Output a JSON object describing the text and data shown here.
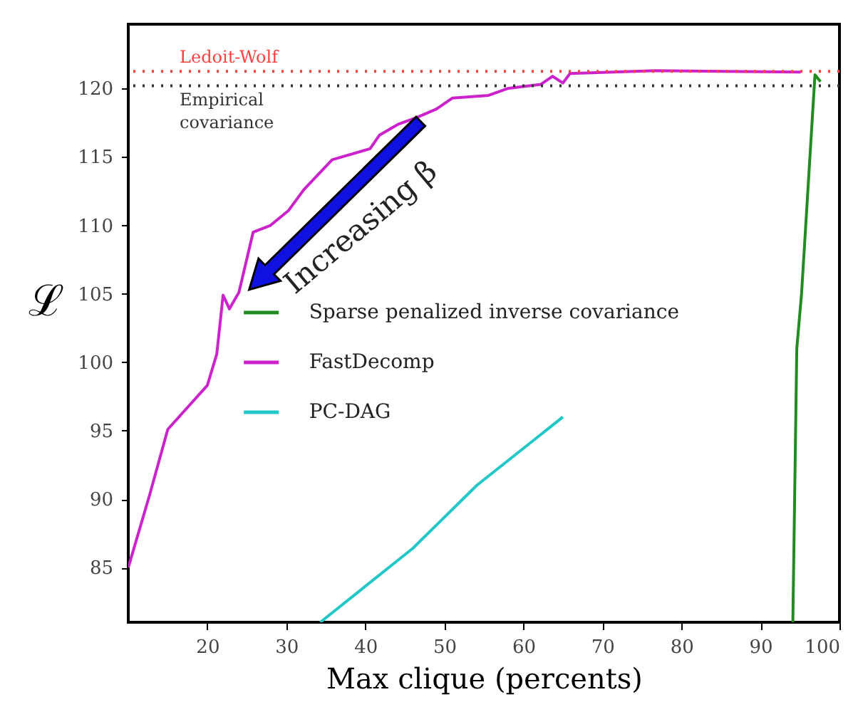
{
  "chart_data": {
    "type": "line",
    "xlabel": "Max clique (percents)",
    "ylabel": "ℒ",
    "xlim": [
      10,
      100
    ],
    "ylim": [
      81,
      124.7
    ],
    "xticks": [
      20,
      30,
      40,
      50,
      60,
      70,
      80,
      90,
      100
    ],
    "yticks": [
      85,
      90,
      95,
      100,
      105,
      110,
      115,
      120
    ],
    "grid": false,
    "legend": "left",
    "marker": "none",
    "line_style": "solid",
    "series": [
      {
        "name": "Sparse penalized inverse covariance",
        "color": "#228b22",
        "x": [
          94.1,
          94.6,
          95.2,
          96.9,
          97.6
        ],
        "values": [
          81,
          101,
          105,
          121,
          120.5
        ]
      },
      {
        "name": "FastDecomp",
        "color": "#cc22cc",
        "x": [
          10,
          12.7,
          15,
          20,
          21.2,
          22,
          22.8,
          24,
          25.8,
          28,
          30.3,
          32.2,
          35.8,
          40.6,
          41.8,
          44.2,
          46.6,
          49,
          51,
          55.6,
          58,
          62.2,
          63.7,
          65,
          65.9,
          71.3,
          76.7,
          95.1
        ],
        "values": [
          85,
          90.3,
          95.1,
          98.3,
          100.6,
          104.9,
          103.9,
          105.1,
          109.5,
          110,
          111.1,
          112.6,
          114.8,
          115.6,
          116.6,
          117.4,
          117.9,
          118.5,
          119.3,
          119.5,
          120,
          120.3,
          120.9,
          120.4,
          121.1,
          121.2,
          121.3,
          121.2
        ]
      },
      {
        "name": "PC-DAG",
        "color": "#22c8c8",
        "x": [
          34.3,
          46,
          54.1,
          65
        ],
        "values": [
          81,
          86.4,
          91,
          96
        ]
      }
    ],
    "ref_lines": [
      {
        "axis": "y",
        "value": 121.25,
        "label": "Ledoit-Wolf",
        "color": "#ff4040",
        "line_style": "dotted"
      },
      {
        "axis": "y",
        "value": 120.2,
        "label": "Empirical covariance",
        "color": "#333333",
        "line_style": "dotted"
      }
    ],
    "annotations": [
      "Increasing β"
    ]
  }
}
